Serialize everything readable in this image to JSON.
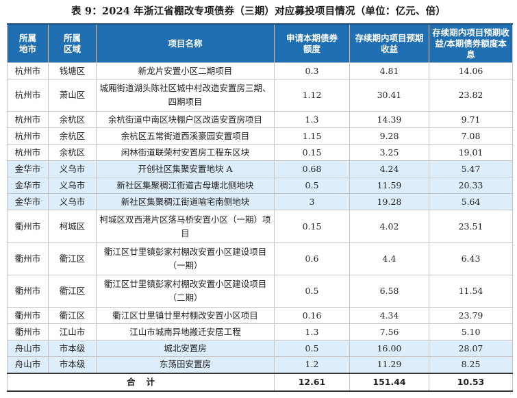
{
  "caption": "表 9：2024 年浙江省棚改专项债券（三期）对应募投项目情况（单位：亿元、倍）",
  "headers": {
    "city": "所属地市",
    "district": "所属区域",
    "project": "项目名称",
    "amount": "申请本期债券额度",
    "income": "存续期内项目预期收益",
    "ratio": "存续期内项目预期收益/本期债券额度本息"
  },
  "rows": [
    {
      "city": "杭州市",
      "district": "钱塘区",
      "project": "新龙片安置小区二期项目",
      "amount": "0.3",
      "income": "4.81",
      "ratio": "14.06"
    },
    {
      "city": "杭州市",
      "district": "萧山区",
      "project": "城厢街道湖头陈社区城中村改造安置房三期、四期项目",
      "amount": "1.12",
      "income": "30.41",
      "ratio": "23.82"
    },
    {
      "city": "杭州市",
      "district": "余杭区",
      "project": "余杭街道中南区块棚户区改造安置房项目",
      "amount": "1.3",
      "income": "14.39",
      "ratio": "9.71"
    },
    {
      "city": "杭州市",
      "district": "余杭区",
      "project": "余杭区五常街道西溪豪园安置项目",
      "amount": "1.15",
      "income": "9.28",
      "ratio": "7.08"
    },
    {
      "city": "杭州市",
      "district": "余杭区",
      "project": "闲林街道联荣村安置房工程东区块",
      "amount": "0.15",
      "income": "3.25",
      "ratio": "19.01"
    },
    {
      "city": "金华市",
      "district": "义乌市",
      "project": "开创社区集聚安置地块 A",
      "amount": "0.68",
      "income": "4.24",
      "ratio": "5.47"
    },
    {
      "city": "金华市",
      "district": "义乌市",
      "project": "新社区集聚稠江街道古母塘北侧地块",
      "amount": "0.5",
      "income": "11.59",
      "ratio": "20.33"
    },
    {
      "city": "金华市",
      "district": "义乌市",
      "project": "新社区集聚稠江街道喻宅南侧地块",
      "amount": "3",
      "income": "19.28",
      "ratio": "5.64"
    },
    {
      "city": "衢州市",
      "district": "柯城区",
      "project": "柯城区双西港片区落马桥安置小区（一期）项目",
      "amount": "0.15",
      "income": "4.02",
      "ratio": "23.51"
    },
    {
      "city": "衢州市",
      "district": "衢江区",
      "project": "衢江区廿里镇彭家村棚改安置小区建设项目（一期）",
      "amount": "0.6",
      "income": "4.4",
      "ratio": "6.43"
    },
    {
      "city": "衢州市",
      "district": "衢江区",
      "project": "衢江区廿里镇彭家村棚改安置小区建设项目（二期）",
      "amount": "0.5",
      "income": "6.58",
      "ratio": "11.54"
    },
    {
      "city": "衢州市",
      "district": "衢江区",
      "project": "衢江区廿里镇廿里村棚改安置小区项目",
      "amount": "0.16",
      "income": "4.34",
      "ratio": "23.79"
    },
    {
      "city": "衢州市",
      "district": "江山市",
      "project": "江山市城南异地搬迁安居工程",
      "amount": "1.3",
      "income": "7.56",
      "ratio": "5.10"
    },
    {
      "city": "舟山市",
      "district": "市本级",
      "project": "城北安置房",
      "amount": "0.5",
      "income": "16.00",
      "ratio": "28.07"
    },
    {
      "city": "舟山市",
      "district": "市本级",
      "project": "东荡田安置房",
      "amount": "1.2",
      "income": "11.29",
      "ratio": "8.25"
    }
  ],
  "total": {
    "label": "合计",
    "amount": "12.61",
    "income": "151.44",
    "ratio": "10.53"
  }
}
